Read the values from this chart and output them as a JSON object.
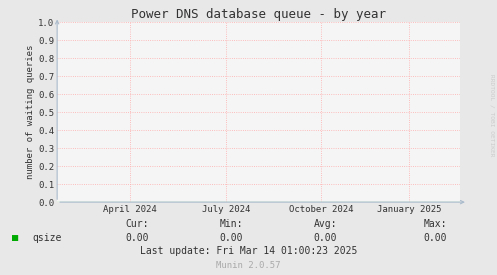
{
  "title": "Power DNS database queue - by year",
  "ylabel": "number of waiting queries",
  "background_color": "#e8e8e8",
  "plot_bg_color": "#f5f5f5",
  "grid_color": "#ffaaaa",
  "ylim": [
    0.0,
    1.0
  ],
  "yticks": [
    0.0,
    0.1,
    0.2,
    0.3,
    0.4,
    0.5,
    0.6,
    0.7,
    0.8,
    0.9,
    1.0
  ],
  "xtick_labels": [
    "April 2024",
    "July 2024",
    "October 2024",
    "January 2025"
  ],
  "xtick_positions": [
    0.18,
    0.42,
    0.655,
    0.875
  ],
  "arrow_color": "#aabbcc",
  "line_color": "#00cc00",
  "legend_label": "qsize",
  "legend_color": "#00aa00",
  "cur_label": "Cur:",
  "cur_value": "0.00",
  "min_label": "Min:",
  "min_value": "0.00",
  "avg_label": "Avg:",
  "avg_value": "0.00",
  "max_label": "Max:",
  "max_value": "0.00",
  "last_update": "Last update: Fri Mar 14 01:00:23 2025",
  "munin_version": "Munin 2.0.57",
  "watermark": "RRDTOOL / TOBI OETIKER",
  "title_fontsize": 9,
  "axis_label_fontsize": 6.5,
  "tick_fontsize": 6.5,
  "legend_fontsize": 7,
  "footer_fontsize": 7
}
